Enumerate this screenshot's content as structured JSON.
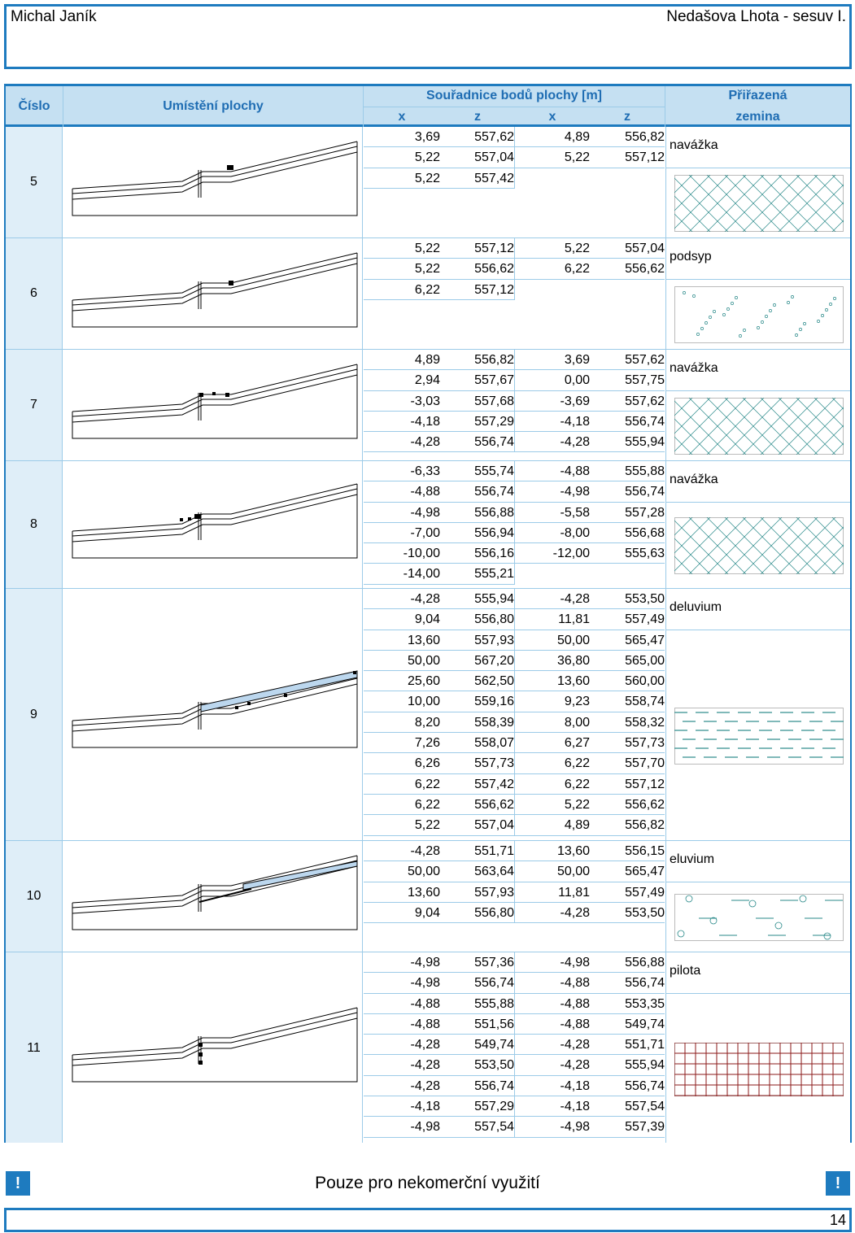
{
  "header": {
    "author": "Michal Janík",
    "project": "Nedašova Lhota - sesuv I."
  },
  "table_header": {
    "cislo": "Číslo",
    "umisteni": "Umístění plochy",
    "souradnice": "Souřadnice bodů plochy [m]",
    "x": "x",
    "z": "z",
    "prirazena": "Přiřazená",
    "zemina": "zemina"
  },
  "rows": [
    {
      "num": "5",
      "soil": "navážka",
      "pattern": "crosshatch",
      "coords": [
        [
          "3,69",
          "557,62",
          "4,89",
          "556,82"
        ],
        [
          "5,22",
          "557,04",
          "5,22",
          "557,12"
        ],
        [
          "5,22",
          "557,42",
          "",
          ""
        ]
      ]
    },
    {
      "num": "6",
      "soil": "podsyp",
      "pattern": "dots",
      "coords": [
        [
          "5,22",
          "557,12",
          "5,22",
          "557,04"
        ],
        [
          "5,22",
          "556,62",
          "6,22",
          "556,62"
        ],
        [
          "6,22",
          "557,12",
          "",
          ""
        ]
      ]
    },
    {
      "num": "7",
      "soil": "navážka",
      "pattern": "crosshatch",
      "coords": [
        [
          "4,89",
          "556,82",
          "3,69",
          "557,62"
        ],
        [
          "2,94",
          "557,67",
          "0,00",
          "557,75"
        ],
        [
          "-3,03",
          "557,68",
          "-3,69",
          "557,62"
        ],
        [
          "-4,18",
          "557,29",
          "-4,18",
          "556,74"
        ],
        [
          "-4,28",
          "556,74",
          "-4,28",
          "555,94"
        ]
      ]
    },
    {
      "num": "8",
      "soil": "navážka",
      "pattern": "crosshatch",
      "coords": [
        [
          "-6,33",
          "555,74",
          "-4,88",
          "555,88"
        ],
        [
          "-4,88",
          "556,74",
          "-4,98",
          "556,74"
        ],
        [
          "-4,98",
          "556,88",
          "-5,58",
          "557,28"
        ],
        [
          "-7,00",
          "556,94",
          "-8,00",
          "556,68"
        ],
        [
          "-10,00",
          "556,16",
          "-12,00",
          "555,63"
        ],
        [
          "-14,00",
          "555,21",
          "",
          ""
        ]
      ]
    },
    {
      "num": "9",
      "soil": "deluvium",
      "pattern": "dashes",
      "coords": [
        [
          "-4,28",
          "555,94",
          "-4,28",
          "553,50"
        ],
        [
          "9,04",
          "556,80",
          "11,81",
          "557,49"
        ],
        [
          "13,60",
          "557,93",
          "50,00",
          "565,47"
        ],
        [
          "50,00",
          "567,20",
          "36,80",
          "565,00"
        ],
        [
          "25,60",
          "562,50",
          "13,60",
          "560,00"
        ],
        [
          "10,00",
          "559,16",
          "9,23",
          "558,74"
        ],
        [
          "8,20",
          "558,39",
          "8,00",
          "558,32"
        ],
        [
          "7,26",
          "558,07",
          "6,27",
          "557,73"
        ],
        [
          "6,26",
          "557,73",
          "6,22",
          "557,70"
        ],
        [
          "6,22",
          "557,42",
          "6,22",
          "557,12"
        ],
        [
          "6,22",
          "556,62",
          "5,22",
          "556,62"
        ],
        [
          "5,22",
          "557,04",
          "4,89",
          "556,82"
        ]
      ]
    },
    {
      "num": "10",
      "soil": "eluvium",
      "pattern": "circles",
      "coords": [
        [
          "-4,28",
          "551,71",
          "13,60",
          "556,15"
        ],
        [
          "50,00",
          "563,64",
          "50,00",
          "565,47"
        ],
        [
          "13,60",
          "557,93",
          "11,81",
          "557,49"
        ],
        [
          "9,04",
          "556,80",
          "-4,28",
          "553,50"
        ]
      ]
    },
    {
      "num": "11",
      "soil": "pilota",
      "pattern": "grid",
      "coords": [
        [
          "-4,98",
          "557,36",
          "-4,98",
          "556,88"
        ],
        [
          "-4,98",
          "556,74",
          "-4,88",
          "556,74"
        ],
        [
          "-4,88",
          "555,88",
          "-4,88",
          "553,35"
        ],
        [
          "-4,88",
          "551,56",
          "-4,88",
          "549,74"
        ],
        [
          "-4,28",
          "549,74",
          "-4,28",
          "551,71"
        ],
        [
          "-4,28",
          "553,50",
          "-4,28",
          "555,94"
        ],
        [
          "-4,28",
          "556,74",
          "-4,18",
          "556,74"
        ],
        [
          "-4,18",
          "557,29",
          "-4,18",
          "557,54"
        ],
        [
          "-4,98",
          "557,54",
          "-4,98",
          "557,39"
        ]
      ]
    }
  ],
  "footer": {
    "notice": "Pouze pro nekomerční využití",
    "excl": "!",
    "page": "14"
  },
  "colors": {
    "accent": "#1e7bbf",
    "header_bg": "#c5e0f2",
    "num_bg": "#dfeef8",
    "pattern_teal": "#2a8a8a",
    "pattern_red": "#8b1a1a",
    "highlight": "#bcd7ee"
  }
}
